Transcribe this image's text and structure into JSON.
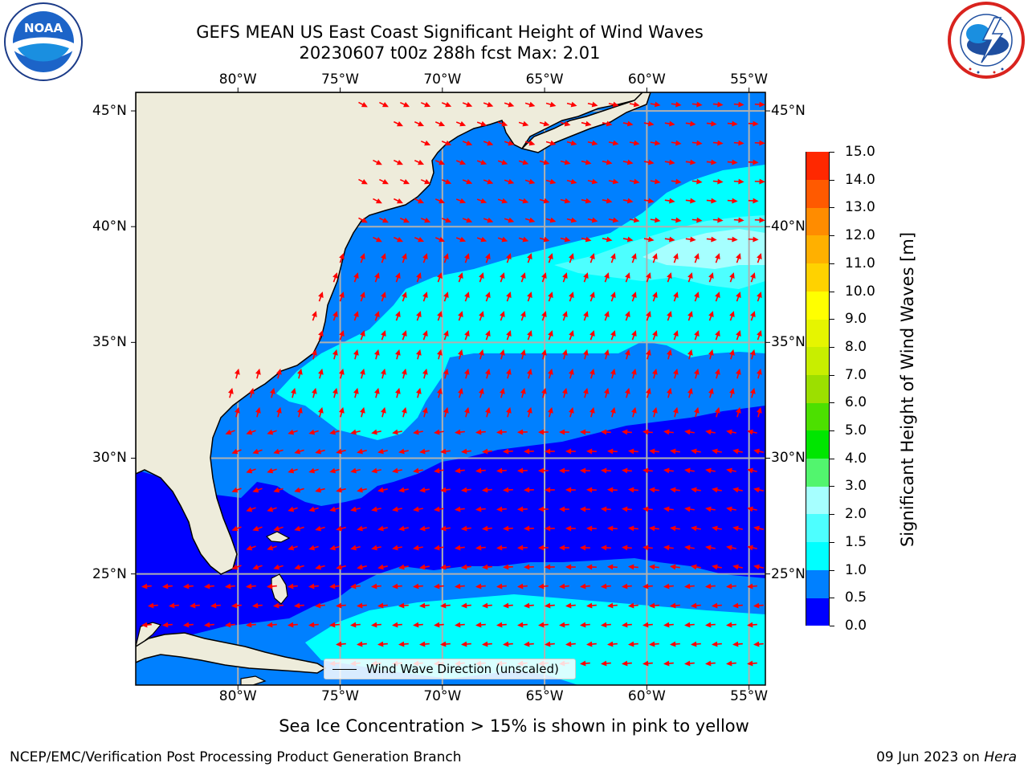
{
  "title": {
    "line1": "GEFS MEAN US East Coast Significant Height of Wind Waves",
    "line2": "20230607 t00z 288h fcst   Max: 2.01"
  },
  "logos": {
    "left": {
      "icon": "noaa-logo",
      "text": "NOAA"
    },
    "right": {
      "icon": "nws-logo",
      "text": "NATIONAL WEATHER SERVICE"
    }
  },
  "map": {
    "projection": "plate-carree",
    "extent": {
      "lon_min": -85,
      "lon_max": -54.2,
      "lat_min": 20.2,
      "lat_max": 45.8
    },
    "lon_ticks": [
      "80°W",
      "75°W",
      "70°W",
      "65°W",
      "60°W",
      "55°W"
    ],
    "lat_ticks": [
      "45°N",
      "40°N",
      "35°N",
      "30°N",
      "25°N"
    ],
    "grid": true,
    "land_color": "#eeecdb",
    "vector_color": "#ff0000",
    "legend_entry": "Wind Wave Direction (unscaled)"
  },
  "colorbar": {
    "label": "Significant Height of Wind Waves [m]",
    "ticks": [
      "0.0",
      "0.5",
      "1.0",
      "1.5",
      "2.0",
      "3.0",
      "4.0",
      "5.0",
      "6.0",
      "7.0",
      "8.0",
      "9.0",
      "10.0",
      "11.0",
      "12.0",
      "13.0",
      "14.0",
      "15.0"
    ],
    "colors": [
      "#0000ff",
      "#0080ff",
      "#00ffff",
      "#4dffff",
      "#a6ffff",
      "#52f56e",
      "#00e600",
      "#4ce000",
      "#9cdf00",
      "#c8ee00",
      "#e6f500",
      "#ffff00",
      "#ffd200",
      "#ffb000",
      "#ff8c00",
      "#ff5a00",
      "#ff2800"
    ]
  },
  "footnote": "Sea Ice Concentration > 15% is shown in pink to yellow",
  "credits": {
    "left": "NCEP/EMC/Verification Post Processing Product Generation Branch",
    "right_prefix": "09 Jun 2023 on ",
    "right_host": "Hera"
  },
  "max_value": 2.01
}
